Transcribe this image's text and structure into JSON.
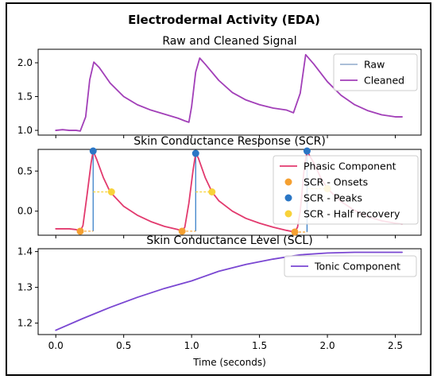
{
  "figure": {
    "title": "Electrodermal Activity (EDA)",
    "xlabel": "Time (seconds)"
  },
  "colors": {
    "raw": "#9fb6d3",
    "cleaned": "#a23fb8",
    "phasic": "#e23a6e",
    "onsets": "#f5a031",
    "peaks": "#2a76c5",
    "half_recovery": "#f8d23a",
    "tonic": "#7a47d2"
  },
  "chart_data": [
    {
      "type": "line",
      "title": "Raw and Cleaned Signal",
      "x_ticks": [
        "0.0",
        "0.5",
        "1.0",
        "1.5",
        "2.0",
        "2.5"
      ],
      "y_ticks": [
        "1.0",
        "1.5",
        "2.0"
      ],
      "xlim": [
        -0.13,
        2.69
      ],
      "ylim": [
        0.93,
        2.2
      ],
      "legend_position": "top-right",
      "series": [
        {
          "name": "Raw",
          "x": [
            0.0,
            0.05,
            0.1,
            0.15,
            0.18,
            0.22,
            0.25,
            0.28,
            0.32,
            0.4,
            0.5,
            0.6,
            0.7,
            0.8,
            0.9,
            0.95,
            0.98,
            1.0,
            1.03,
            1.06,
            1.1,
            1.2,
            1.3,
            1.4,
            1.5,
            1.6,
            1.7,
            1.75,
            1.8,
            1.84,
            1.9,
            2.0,
            2.1,
            2.2,
            2.3,
            2.4,
            2.5,
            2.55
          ],
          "values": [
            1.0,
            1.01,
            1.0,
            1.0,
            0.99,
            1.2,
            1.75,
            2.01,
            1.93,
            1.7,
            1.5,
            1.38,
            1.3,
            1.24,
            1.18,
            1.14,
            1.12,
            1.35,
            1.86,
            2.07,
            1.98,
            1.74,
            1.56,
            1.45,
            1.38,
            1.33,
            1.3,
            1.26,
            1.55,
            2.12,
            1.98,
            1.72,
            1.52,
            1.38,
            1.29,
            1.23,
            1.2,
            1.2
          ]
        },
        {
          "name": "Cleaned",
          "x": [
            0.0,
            0.05,
            0.1,
            0.15,
            0.18,
            0.22,
            0.25,
            0.28,
            0.32,
            0.4,
            0.5,
            0.6,
            0.7,
            0.8,
            0.9,
            0.95,
            0.98,
            1.0,
            1.03,
            1.06,
            1.1,
            1.2,
            1.3,
            1.4,
            1.5,
            1.6,
            1.7,
            1.75,
            1.8,
            1.84,
            1.9,
            2.0,
            2.1,
            2.2,
            2.3,
            2.4,
            2.5,
            2.55
          ],
          "values": [
            1.0,
            1.01,
            1.0,
            1.0,
            0.99,
            1.2,
            1.75,
            2.01,
            1.93,
            1.7,
            1.5,
            1.38,
            1.3,
            1.24,
            1.18,
            1.14,
            1.12,
            1.35,
            1.86,
            2.07,
            1.98,
            1.74,
            1.56,
            1.45,
            1.38,
            1.33,
            1.3,
            1.26,
            1.55,
            2.12,
            1.98,
            1.72,
            1.52,
            1.38,
            1.29,
            1.23,
            1.2,
            1.2
          ]
        }
      ]
    },
    {
      "type": "line",
      "title": "Skin Conductance Response (SCR)",
      "x_ticks": [
        "0.0",
        "0.5",
        "1.0",
        "1.5",
        "2.0",
        "2.5"
      ],
      "y_ticks": [
        "0.0",
        "0.5"
      ],
      "xlim": [
        -0.13,
        2.69
      ],
      "ylim": [
        -0.3,
        0.77
      ],
      "legend_position": "top-right",
      "series": [
        {
          "name": "Phasic Component",
          "x": [
            0.0,
            0.1,
            0.15,
            0.18,
            0.2,
            0.23,
            0.26,
            0.275,
            0.3,
            0.35,
            0.4,
            0.5,
            0.6,
            0.7,
            0.8,
            0.9,
            0.93,
            0.95,
            0.98,
            1.01,
            1.03,
            1.05,
            1.1,
            1.15,
            1.2,
            1.3,
            1.4,
            1.5,
            1.6,
            1.7,
            1.76,
            1.78,
            1.8,
            1.83,
            1.85,
            1.9,
            1.95,
            2.0,
            2.1,
            2.2,
            2.3,
            2.4,
            2.5,
            2.55
          ],
          "values": [
            -0.22,
            -0.22,
            -0.23,
            -0.25,
            -0.18,
            0.2,
            0.6,
            0.75,
            0.65,
            0.42,
            0.24,
            0.06,
            -0.05,
            -0.13,
            -0.19,
            -0.23,
            -0.25,
            -0.2,
            0.1,
            0.5,
            0.72,
            0.66,
            0.42,
            0.24,
            0.13,
            0.0,
            -0.09,
            -0.15,
            -0.2,
            -0.24,
            -0.26,
            -0.2,
            0.0,
            0.55,
            0.75,
            0.6,
            0.42,
            0.28,
            0.12,
            0.01,
            -0.07,
            -0.12,
            -0.15,
            -0.16
          ]
        }
      ],
      "onsets": [
        [
          0.18,
          -0.25
        ],
        [
          0.93,
          -0.25
        ],
        [
          1.76,
          -0.26
        ]
      ],
      "peaks": [
        [
          0.275,
          0.75
        ],
        [
          1.03,
          0.72
        ],
        [
          1.85,
          0.75
        ]
      ],
      "half_recovery": [
        [
          0.41,
          0.24
        ],
        [
          1.15,
          0.24
        ],
        [
          2.0,
          0.28
        ]
      ],
      "legend": [
        "Phasic Component",
        "SCR - Onsets",
        "SCR - Peaks",
        "SCR - Half recovery"
      ]
    },
    {
      "type": "line",
      "title": "Skin Conductance Level (SCL)",
      "x_ticks": [
        "0.0",
        "0.5",
        "1.0",
        "1.5",
        "2.0",
        "2.5"
      ],
      "y_ticks": [
        "1.2",
        "1.3",
        "1.4"
      ],
      "xlim": [
        -0.13,
        2.69
      ],
      "ylim": [
        1.168,
        1.408
      ],
      "legend_position": "top-right",
      "series": [
        {
          "name": "Tonic Component",
          "x": [
            0.0,
            0.2,
            0.4,
            0.6,
            0.8,
            1.0,
            1.2,
            1.4,
            1.6,
            1.8,
            2.0,
            2.2,
            2.4,
            2.55
          ],
          "values": [
            1.18,
            1.213,
            1.244,
            1.272,
            1.297,
            1.318,
            1.345,
            1.364,
            1.379,
            1.391,
            1.396,
            1.398,
            1.398,
            1.398
          ]
        }
      ]
    }
  ]
}
